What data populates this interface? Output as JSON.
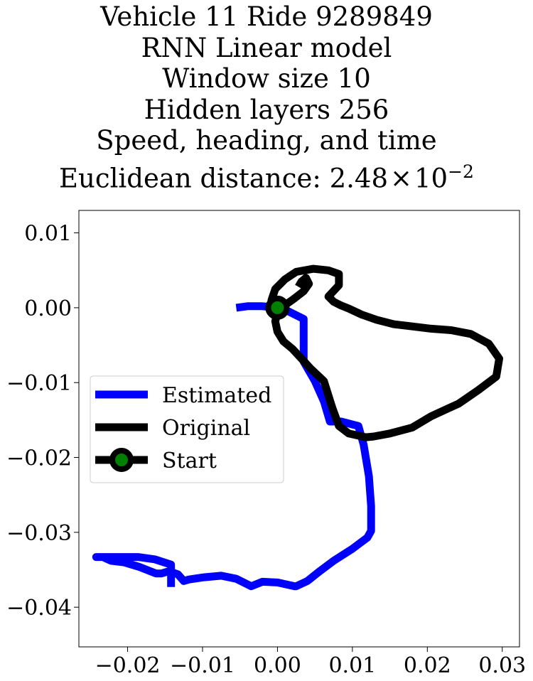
{
  "title_lines": [
    "Vehicle 11 Ride 9289849",
    "RNN Linear model",
    "Window size 10",
    "Hidden layers 256",
    "Speed, heading, and time"
  ],
  "title_last": {
    "prefix": "Euclidean distance: 2.48",
    "times": "×",
    "base": "10",
    "exponent": "−2"
  },
  "chart_data": {
    "type": "line",
    "title": "Vehicle 11 Ride 9289849 / RNN Linear model / Window size 10 / Hidden layers 256 / Speed, heading, and time / Euclidean distance: 2.48×10^-2",
    "xlabel": "",
    "ylabel": "",
    "xlim": [
      -0.0265,
      0.0323
    ],
    "ylim": [
      -0.0453,
      0.013
    ],
    "x_ticks": [
      -0.02,
      -0.01,
      0.0,
      0.01,
      0.02,
      0.03
    ],
    "x_tick_labels": [
      "−0.02",
      "−0.01",
      "0.00",
      "0.01",
      "0.02",
      "0.03"
    ],
    "y_ticks": [
      0.01,
      0.0,
      -0.01,
      -0.02,
      -0.03,
      -0.04
    ],
    "y_tick_labels": [
      "0.01",
      "0.00",
      "−0.01",
      "−0.02",
      "−0.03",
      "−0.04"
    ],
    "grid": false,
    "legend_position": "center-left",
    "series": [
      {
        "name": "Estimated",
        "color": "#0000ff",
        "x": [
          -0.0055,
          -0.004,
          -0.002,
          0.0,
          0.0015,
          0.0035,
          0.0035,
          0.005,
          0.0062,
          0.007,
          0.0085,
          0.0108,
          0.0115,
          0.0122,
          0.0125,
          0.0125,
          0.012,
          0.01,
          0.0075,
          0.0055,
          0.004,
          0.0025,
          0.0023,
          0.0,
          -0.002,
          -0.0035,
          -0.0055,
          -0.0075,
          -0.0098,
          -0.0118,
          -0.0125,
          -0.0133,
          -0.0145,
          -0.0155,
          -0.0162,
          -0.0185,
          -0.0205,
          -0.0222,
          -0.0233,
          -0.0242,
          -0.0228,
          -0.0206,
          -0.0186,
          -0.0164,
          -0.0142,
          -0.0142
        ],
        "y": [
          0.0,
          0.0002,
          0.0002,
          0.0,
          -0.0005,
          -0.0015,
          -0.0072,
          -0.0098,
          -0.0125,
          -0.0152,
          -0.0152,
          -0.0158,
          -0.0183,
          -0.0225,
          -0.0265,
          -0.0298,
          -0.0307,
          -0.0322,
          -0.0338,
          -0.0353,
          -0.0365,
          -0.0372,
          -0.0372,
          -0.0367,
          -0.0366,
          -0.0372,
          -0.0362,
          -0.0358,
          -0.036,
          -0.0363,
          -0.0365,
          -0.0356,
          -0.0352,
          -0.0355,
          -0.0355,
          -0.0346,
          -0.034,
          -0.0338,
          -0.0333,
          -0.0333,
          -0.0333,
          -0.0333,
          -0.0333,
          -0.0336,
          -0.0343,
          -0.0373
        ]
      },
      {
        "name": "Original",
        "color": "#000000",
        "x": [
          0.0,
          -0.0008,
          -0.0003,
          0.001,
          0.0025,
          0.0048,
          0.0068,
          0.0082,
          0.0082,
          0.0068,
          0.0075,
          0.0085,
          0.0095,
          0.0112,
          0.0132,
          0.0155,
          0.018,
          0.0205,
          0.0232,
          0.0258,
          0.0282,
          0.0296,
          0.0292,
          0.0268,
          0.0242,
          0.0205,
          0.018,
          0.015,
          0.0128,
          0.0118,
          0.0095,
          0.0082,
          0.0073,
          0.0062,
          0.0045,
          0.0032,
          0.002,
          0.0008,
          0.0,
          -0.0003,
          0.0,
          0.0008,
          0.0022,
          0.0035,
          0.0042,
          0.0038,
          0.0032,
          0.0028
        ],
        "y": [
          0.0,
          0.001,
          0.0025,
          0.0038,
          0.0048,
          0.0052,
          0.005,
          0.0045,
          0.003,
          0.0015,
          0.0008,
          0.0003,
          -0.0001,
          -0.0009,
          -0.0016,
          -0.0022,
          -0.0025,
          -0.0028,
          -0.003,
          -0.0035,
          -0.0048,
          -0.0068,
          -0.0092,
          -0.011,
          -0.0128,
          -0.0145,
          -0.016,
          -0.0168,
          -0.0172,
          -0.0173,
          -0.0168,
          -0.0158,
          -0.0133,
          -0.0098,
          -0.0082,
          -0.0068,
          -0.0055,
          -0.0045,
          -0.0032,
          -0.0018,
          -0.0008,
          0.0002,
          0.0012,
          0.0022,
          0.0032,
          0.004,
          0.0035,
          0.0028
        ]
      },
      {
        "name": "Start",
        "color": "#000000",
        "marker_color": "#008000",
        "x": [
          0.0
        ],
        "y": [
          0.0
        ]
      }
    ]
  }
}
